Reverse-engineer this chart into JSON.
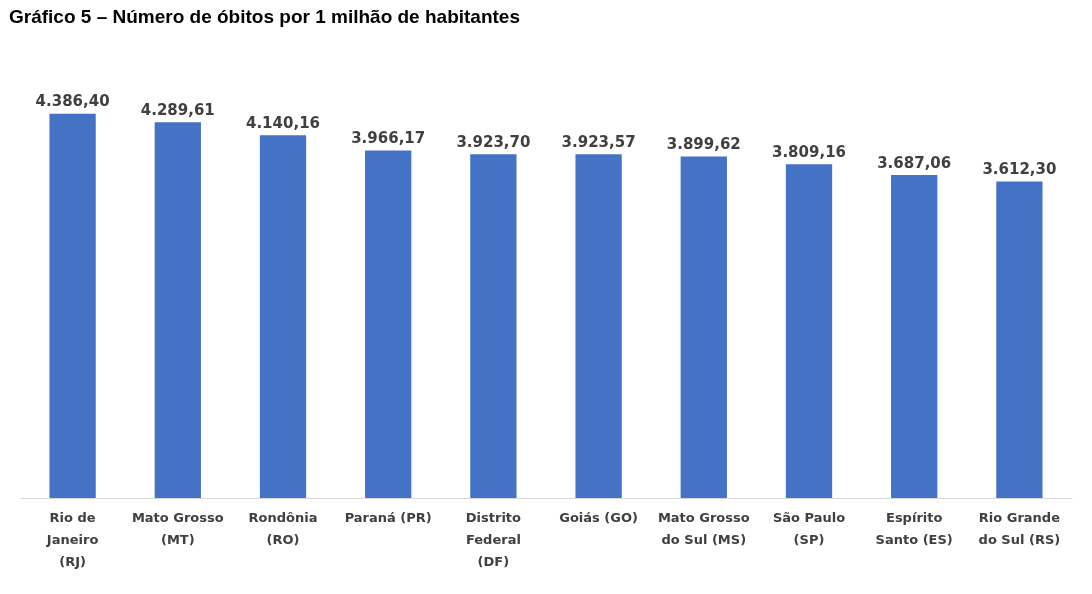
{
  "chart_data": {
    "type": "bar",
    "title": "Gráfico 5 – Número de óbitos por 1 milhão de habitantes",
    "categories": [
      "Rio de Janeiro (RJ)",
      "Mato Grosso (MT)",
      "Rondônia (RO)",
      "Paraná (PR)",
      "Distrito Federal (DF)",
      "Goiás (GO)",
      "Mato Grosso do Sul (MS)",
      "São Paulo (SP)",
      "Espírito Santo (ES)",
      "Rio Grande do Sul (RS)"
    ],
    "values": [
      4386.4,
      4289.61,
      4140.16,
      3966.17,
      3923.7,
      3923.57,
      3899.62,
      3809.16,
      3687.06,
      3612.3
    ],
    "value_labels": [
      "4.386,40",
      "4.289,61",
      "4.140,16",
      "3.966,17",
      "3.923,70",
      "3.923,57",
      "3.899,62",
      "3.809,16",
      "3.687,06",
      "3.612,30"
    ],
    "color": "#4472c4",
    "grid": false
  }
}
